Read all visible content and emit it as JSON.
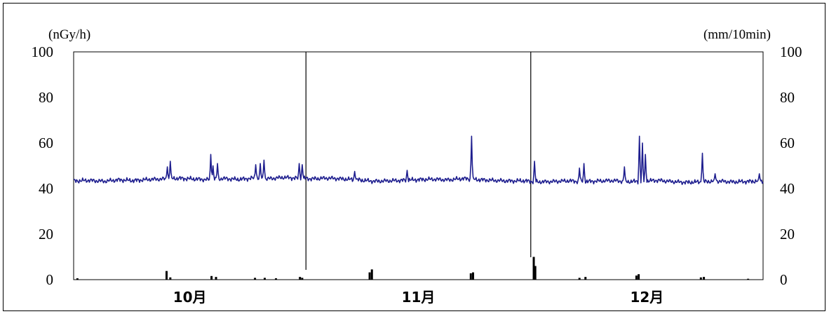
{
  "chart_data": {
    "type": "line",
    "title": "",
    "y_left_unit": "(nGy/h)",
    "y_right_unit": "(mm/10min)",
    "ylim": [
      0,
      100
    ],
    "yticks": [
      "0",
      "20",
      "40",
      "60",
      "80",
      "100"
    ],
    "months": [
      "10月",
      "11月",
      "12月"
    ],
    "month_boundaries_day": [
      31,
      61
    ],
    "x_range_days": [
      0,
      92
    ],
    "grid": false,
    "colors": {
      "dose": "#1f1f8f",
      "rain": "#000000"
    },
    "series": [
      {
        "kind": "dose_rate_line",
        "baseline": [
          [
            0,
            43.3
          ],
          [
            2,
            43.6
          ],
          [
            4,
            43.2
          ],
          [
            6,
            43.8
          ],
          [
            8,
            43.5
          ],
          [
            10,
            44.0
          ],
          [
            12,
            44.2
          ],
          [
            14,
            44.5
          ],
          [
            16,
            44.2
          ],
          [
            18,
            43.9
          ],
          [
            20,
            44.4
          ],
          [
            22,
            44.0
          ],
          [
            24,
            44.6
          ],
          [
            26,
            44.3
          ],
          [
            28,
            44.9
          ],
          [
            30,
            44.5
          ],
          [
            32,
            44.3
          ],
          [
            34,
            44.6
          ],
          [
            36,
            44.2
          ],
          [
            38,
            43.8
          ],
          [
            40,
            43.2
          ],
          [
            42,
            43.4
          ],
          [
            44,
            43.6
          ],
          [
            46,
            43.9
          ],
          [
            48,
            44.1
          ],
          [
            50,
            43.8
          ],
          [
            52,
            44.4
          ],
          [
            54,
            43.9
          ],
          [
            56,
            43.6
          ],
          [
            58,
            43.3
          ],
          [
            60,
            43.4
          ],
          [
            62,
            42.9
          ],
          [
            64,
            43.1
          ],
          [
            66,
            43.4
          ],
          [
            68,
            43.0
          ],
          [
            70,
            43.3
          ],
          [
            72,
            43.5
          ],
          [
            74,
            43.0
          ],
          [
            76,
            43.3
          ],
          [
            78,
            43.6
          ],
          [
            80,
            43.0
          ],
          [
            82,
            42.7
          ],
          [
            84,
            43.0
          ],
          [
            86,
            43.3
          ],
          [
            88,
            42.9
          ],
          [
            90,
            43.1
          ],
          [
            92,
            43.3
          ]
        ],
        "spikes": [
          [
            12.5,
            49.5
          ],
          [
            12.9,
            52.0
          ],
          [
            18.3,
            55.0
          ],
          [
            18.6,
            50.0
          ],
          [
            19.2,
            51.0
          ],
          [
            24.3,
            50.5
          ],
          [
            24.9,
            51.0
          ],
          [
            25.4,
            52.5
          ],
          [
            30.1,
            51.0
          ],
          [
            30.5,
            50.5
          ],
          [
            37.5,
            47.5
          ],
          [
            44.5,
            48.0
          ],
          [
            53.1,
            63.0
          ],
          [
            61.5,
            52.0
          ],
          [
            67.5,
            49.0
          ],
          [
            68.1,
            51.0
          ],
          [
            73.5,
            49.5
          ],
          [
            75.5,
            63.0
          ],
          [
            75.9,
            60.0
          ],
          [
            76.3,
            55.0
          ],
          [
            83.9,
            55.5
          ],
          [
            85.6,
            46.5
          ],
          [
            91.5,
            46.5
          ]
        ]
      },
      {
        "kind": "rainfall_bars",
        "values": [
          [
            0.5,
            0.6
          ],
          [
            12.4,
            3.8
          ],
          [
            12.9,
            1.0
          ],
          [
            18.4,
            1.6
          ],
          [
            19.0,
            1.2
          ],
          [
            24.2,
            0.8
          ],
          [
            25.5,
            0.8
          ],
          [
            27.0,
            0.6
          ],
          [
            30.2,
            1.2
          ],
          [
            30.5,
            0.8
          ],
          [
            39.5,
            3.2
          ],
          [
            39.8,
            4.5
          ],
          [
            53.0,
            2.8
          ],
          [
            53.3,
            3.2
          ],
          [
            61.4,
            10.0
          ],
          [
            61.6,
            6.0
          ],
          [
            67.5,
            0.8
          ],
          [
            68.3,
            1.2
          ],
          [
            75.1,
            1.8
          ],
          [
            75.4,
            2.4
          ],
          [
            83.7,
            1.0
          ],
          [
            84.1,
            1.2
          ],
          [
            90.0,
            0.4
          ]
        ]
      }
    ]
  }
}
